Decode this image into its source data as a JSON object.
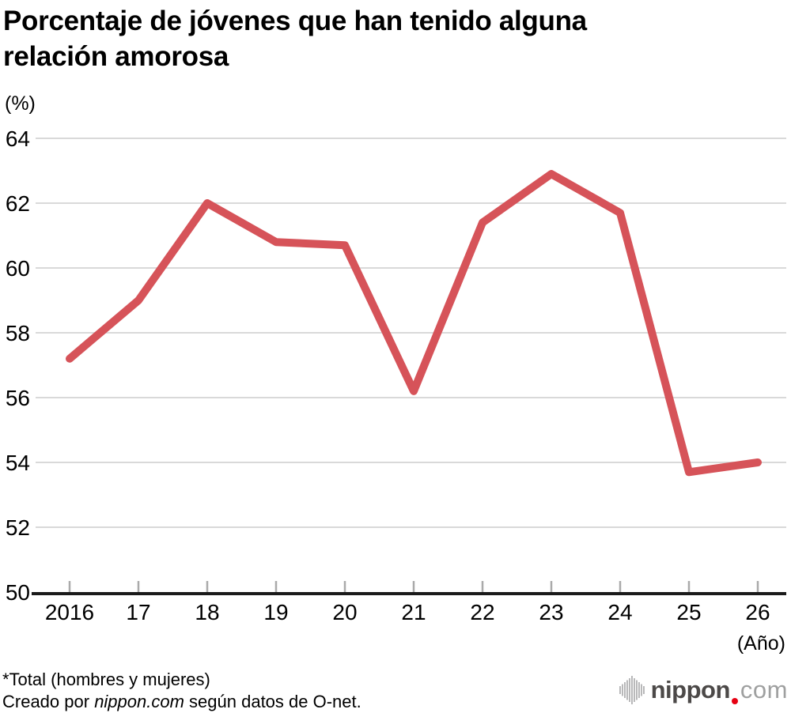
{
  "title_lines": [
    "Porcentaje de jóvenes que han tenido alguna",
    "relación amorosa"
  ],
  "footer": {
    "note": "*Total (hombres y mujeres)",
    "credit_prefix": "Creado por ",
    "credit_brand": "nippon.com",
    "credit_suffix": " según datos de O-net."
  },
  "logo": {
    "icon": "soundwave-bars-icon",
    "name": "nippon",
    "tld": "com",
    "name_color": "#4c4948",
    "dot_color": "#e60012",
    "tld_color": "#9fa0a0",
    "bars_color": "#b5b5b6"
  },
  "chart_data": {
    "type": "line",
    "title": "Porcentaje de jóvenes que han tenido alguna relación amorosa",
    "ylabel": "(%)",
    "xlabel": "(Año)",
    "x": [
      2016,
      2017,
      2018,
      2019,
      2020,
      2021,
      2022,
      2023,
      2024,
      2025,
      2026
    ],
    "x_tick_labels": [
      "2016",
      "17",
      "18",
      "19",
      "20",
      "21",
      "22",
      "23",
      "24",
      "25",
      "26"
    ],
    "series": [
      {
        "name": "Total (hombres y mujeres)",
        "values": [
          57.2,
          59.0,
          62.0,
          60.8,
          60.7,
          56.2,
          61.4,
          62.9,
          61.7,
          53.7,
          54.0
        ]
      }
    ],
    "ylim": [
      50,
      64
    ],
    "yticks": [
      64,
      62,
      60,
      58,
      56,
      54,
      52,
      50
    ],
    "grid": "horizontal",
    "legend": "none",
    "line_color": "#d65359",
    "grid_color": "#d9d9d9",
    "axis_color": "#1a1a1a",
    "tick_color": "#aaaaaa",
    "label_color": "#000000"
  }
}
